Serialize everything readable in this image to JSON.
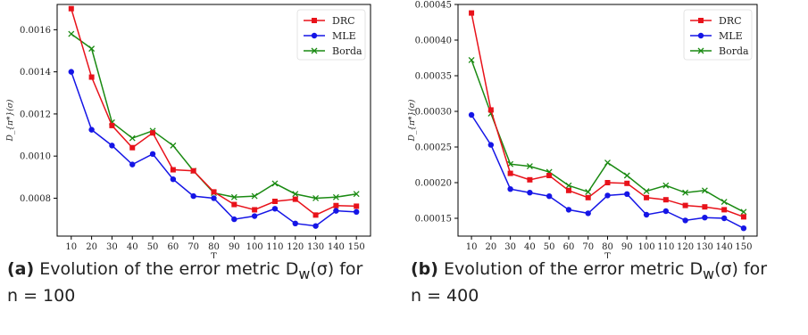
{
  "colors": {
    "DRC": "#e8121a",
    "MLE": "#1515e6",
    "Borda": "#1a8a12"
  },
  "captions": [
    {
      "tag": "(a)",
      "text": "Evolution of the error metric D",
      "sub": "w",
      "tail": "(σ) for",
      "line2": "n = 100"
    },
    {
      "tag": "(b)",
      "text": "Evolution of the error metric D",
      "sub": "w",
      "tail": "(σ) for",
      "line2": "n = 400"
    }
  ],
  "chart_data": [
    {
      "type": "line",
      "xlabel": "T",
      "ylabel": "D_{π*}(σ)",
      "x": [
        10,
        20,
        30,
        40,
        50,
        60,
        70,
        80,
        90,
        100,
        110,
        120,
        130,
        140,
        150
      ],
      "ylim": [
        0.00062,
        0.00172
      ],
      "yticks": [
        "0.0008",
        "0.0010",
        "0.0012",
        "0.0014",
        "0.0016"
      ],
      "ytick_values": [
        0.0008,
        0.001,
        0.0012,
        0.0014,
        0.0016
      ],
      "legend": "top-right",
      "series": [
        {
          "name": "DRC",
          "marker": "square",
          "values": [
            0.0017,
            0.001375,
            0.001145,
            0.00104,
            0.00111,
            0.000935,
            0.00093,
            0.00083,
            0.00077,
            0.000745,
            0.000785,
            0.000795,
            0.00072,
            0.000765,
            0.000762
          ]
        },
        {
          "name": "MLE",
          "marker": "circle",
          "values": [
            0.0014,
            0.001125,
            0.00105,
            0.00096,
            0.00101,
            0.00089,
            0.00081,
            0.0008,
            0.0007,
            0.000715,
            0.00075,
            0.00068,
            0.000668,
            0.00074,
            0.000735
          ]
        },
        {
          "name": "Borda",
          "marker": "x",
          "values": [
            0.00158,
            0.00151,
            0.00116,
            0.001085,
            0.00112,
            0.00105,
            0.00093,
            0.000825,
            0.000805,
            0.00081,
            0.00087,
            0.00082,
            0.0008,
            0.000805,
            0.00082
          ]
        }
      ]
    },
    {
      "type": "line",
      "xlabel": "T",
      "ylabel": "D_{π*}(σ)",
      "x": [
        10,
        20,
        30,
        40,
        50,
        60,
        70,
        80,
        90,
        100,
        110,
        120,
        130,
        140,
        150
      ],
      "ylim": [
        0.000125,
        0.00045
      ],
      "yticks": [
        "0.00015",
        "0.00020",
        "0.00025",
        "0.00030",
        "0.00035",
        "0.00040",
        "0.00045"
      ],
      "ytick_values": [
        0.00015,
        0.0002,
        0.00025,
        0.0003,
        0.00035,
        0.0004,
        0.00045
      ],
      "legend": "top-right",
      "series": [
        {
          "name": "DRC",
          "marker": "square",
          "values": [
            0.000438,
            0.000302,
            0.000213,
            0.000204,
            0.00021,
            0.000189,
            0.000179,
            0.0002,
            0.000199,
            0.000179,
            0.000176,
            0.000168,
            0.000166,
            0.000162,
            0.000152
          ]
        },
        {
          "name": "MLE",
          "marker": "circle",
          "values": [
            0.000295,
            0.000253,
            0.000191,
            0.000186,
            0.000181,
            0.000162,
            0.000157,
            0.000182,
            0.000184,
            0.000155,
            0.00016,
            0.000147,
            0.000151,
            0.00015,
            0.000136
          ]
        },
        {
          "name": "Borda",
          "marker": "x",
          "values": [
            0.000372,
            0.000297,
            0.000226,
            0.000223,
            0.000215,
            0.000196,
            0.000187,
            0.000228,
            0.00021,
            0.000188,
            0.000196,
            0.000186,
            0.000189,
            0.000173,
            0.000159
          ]
        }
      ]
    }
  ]
}
